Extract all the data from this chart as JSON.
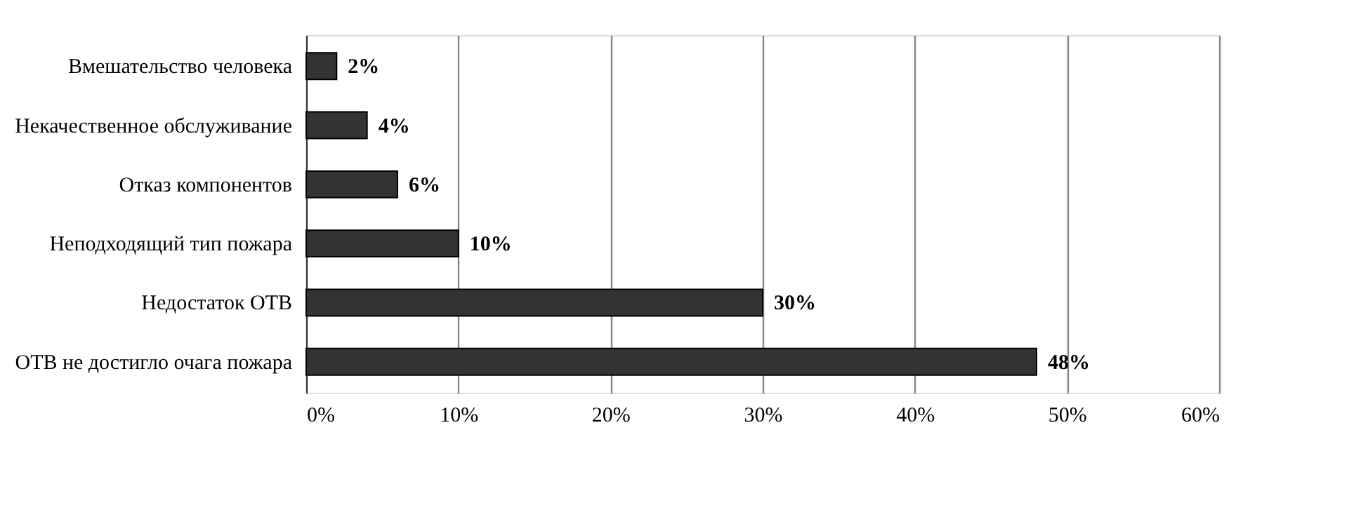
{
  "chart_data": {
    "type": "bar",
    "orientation": "horizontal",
    "categories": [
      "Вмешательство человека",
      "Некачественное обслуживание",
      "Отказ компонентов",
      "Неподходящий тип пожара",
      "Недостаток ОТВ",
      "ОТВ не достигло очага пожара"
    ],
    "values": [
      2,
      4,
      6,
      10,
      30,
      48
    ],
    "value_labels": [
      "2%",
      "4%",
      "6%",
      "10%",
      "30%",
      "48%"
    ],
    "color": "#333333",
    "xlim": [
      0,
      60
    ],
    "xticks": [
      {
        "value": 0,
        "label": "0%"
      },
      {
        "value": 10,
        "label": "10%"
      },
      {
        "value": 20,
        "label": "20%"
      },
      {
        "value": 30,
        "label": "30%"
      },
      {
        "value": 40,
        "label": "40%"
      },
      {
        "value": 50,
        "label": "50%"
      },
      {
        "value": 60,
        "label": "60%"
      }
    ],
    "grid": "x"
  }
}
